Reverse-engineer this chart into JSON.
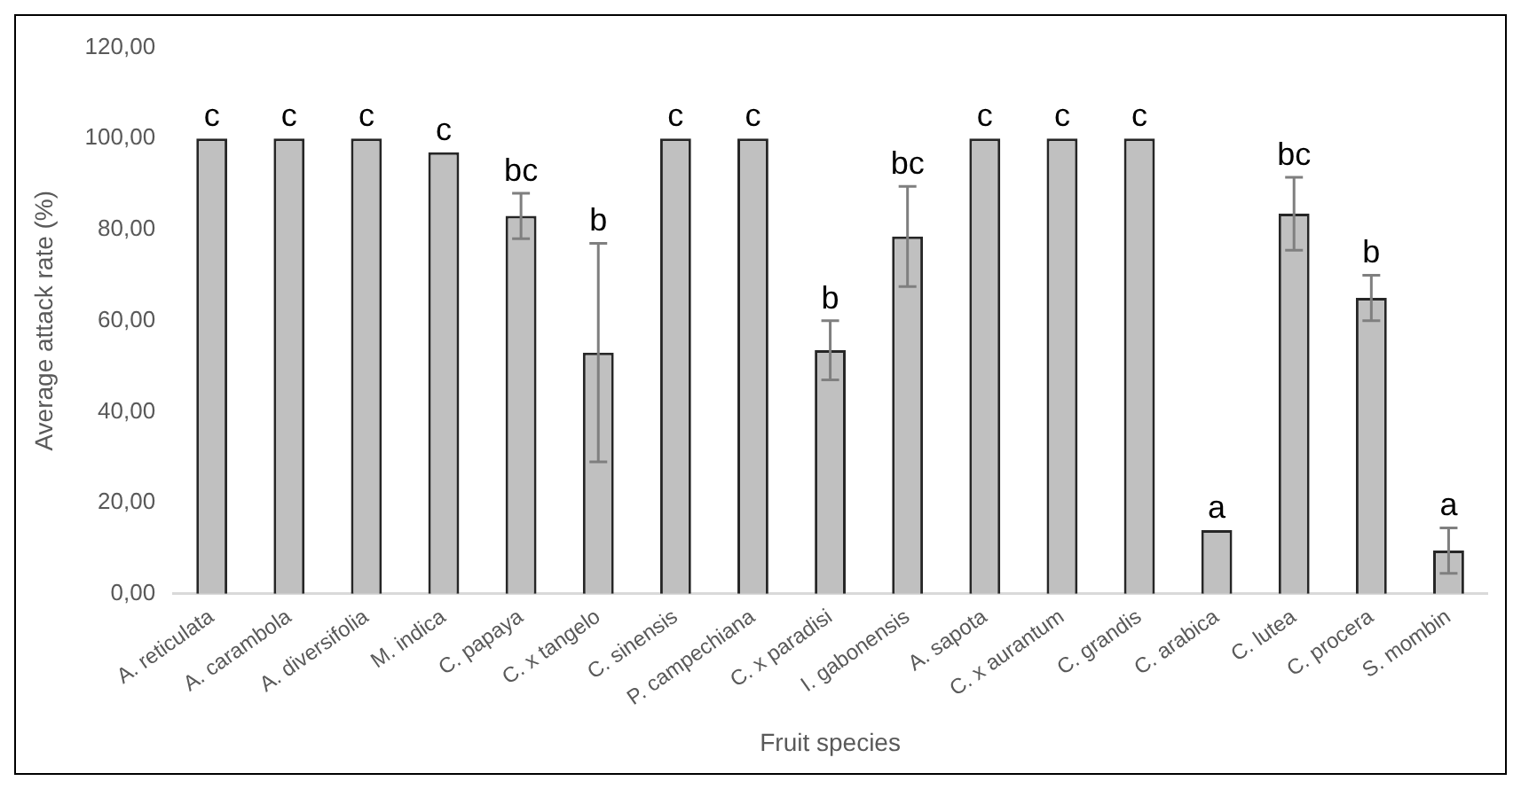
{
  "chart_data": {
    "type": "bar",
    "xlabel": "Fruit species",
    "ylabel": "Average attack rate (%)",
    "categories": [
      "A. reticulata",
      "A. carambola",
      "A. diversifolia",
      "M. indica",
      "C. papaya",
      "C. x tangelo",
      "C. sinensis",
      "P. campechiana",
      "C. x paradisi",
      "I. gabonensis",
      "A. sapota",
      "C. x aurantum",
      "C. grandis",
      "C. arabica",
      "C. lutea",
      "C. procera",
      "S. mombin"
    ],
    "values": [
      100,
      100,
      100,
      97,
      83,
      53,
      100,
      100,
      53.5,
      78.5,
      100,
      100,
      100,
      14,
      83.5,
      65,
      9.5
    ],
    "errors": [
      null,
      null,
      null,
      null,
      5,
      24,
      null,
      null,
      6.5,
      11,
      null,
      null,
      null,
      null,
      8,
      5,
      5
    ],
    "color": "#c0c0c0",
    "ylim": [
      0,
      120
    ],
    "yticks": [
      {
        "value": 0,
        "label": "0,00"
      },
      {
        "value": 20,
        "label": "20,00"
      },
      {
        "value": 40,
        "label": "40,00"
      },
      {
        "value": 60,
        "label": "60,00"
      },
      {
        "value": 80,
        "label": "80,00"
      },
      {
        "value": 100,
        "label": "100,00"
      },
      {
        "value": 120,
        "label": "120,00"
      }
    ],
    "grid": false,
    "legend": false,
    "annotations": [
      {
        "text": "c",
        "x": "A. reticulata",
        "y": 100
      },
      {
        "text": "c",
        "x": "A. carambola",
        "y": 100
      },
      {
        "text": "c",
        "x": "A. diversifolia",
        "y": 100
      },
      {
        "text": "c",
        "x": "M. indica",
        "y": 97
      },
      {
        "text": "bc",
        "x": "C. papaya",
        "y": 88
      },
      {
        "text": "b",
        "x": "C. x tangelo",
        "y": 77
      },
      {
        "text": "c",
        "x": "C. sinensis",
        "y": 100
      },
      {
        "text": "c",
        "x": "P. campechiana",
        "y": 100
      },
      {
        "text": "b",
        "x": "C. x paradisi",
        "y": 60
      },
      {
        "text": "bc",
        "x": "I. gabonensis",
        "y": 89.5
      },
      {
        "text": "c",
        "x": "A. sapota",
        "y": 100
      },
      {
        "text": "c",
        "x": "C. x aurantum",
        "y": 100
      },
      {
        "text": "c",
        "x": "C. grandis",
        "y": 100
      },
      {
        "text": "a",
        "x": "C. arabica",
        "y": 14
      },
      {
        "text": "bc",
        "x": "C. lutea",
        "y": 91.5
      },
      {
        "text": "b",
        "x": "C. procera",
        "y": 70
      },
      {
        "text": "a",
        "x": "S. mombin",
        "y": 14.5
      }
    ]
  }
}
